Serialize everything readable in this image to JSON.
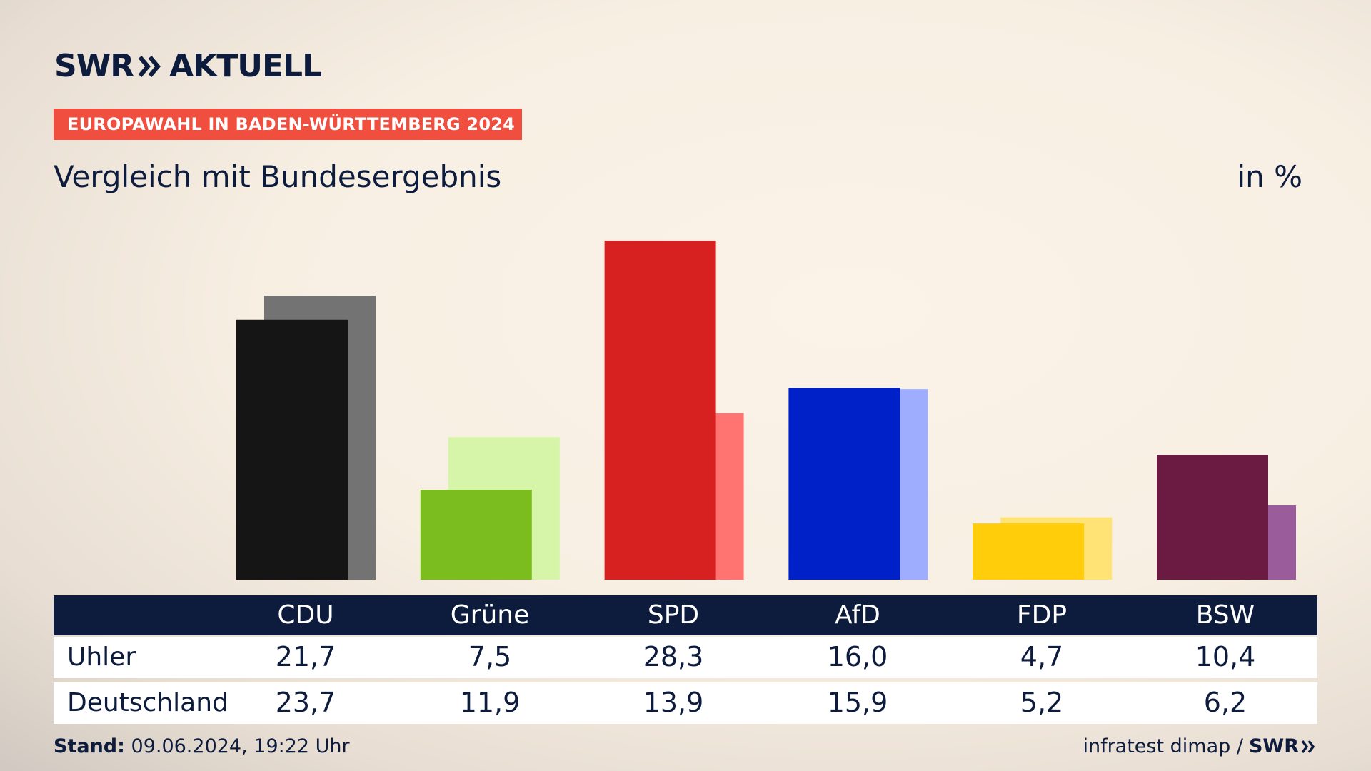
{
  "logo": {
    "brand": "SWR",
    "product": "AKTUELL"
  },
  "badge": "EUROPAWAHL IN BADEN-WÜRTTEMBERG 2024",
  "subtitle": "Vergleich mit Bundesergebnis",
  "unit": "in %",
  "chart_data": {
    "type": "bar",
    "title": "Vergleich mit Bundesergebnis",
    "ylabel": "in %",
    "ylim": [
      0,
      30
    ],
    "categories": [
      "CDU",
      "Grüne",
      "SPD",
      "AfD",
      "FDP",
      "BSW"
    ],
    "series": [
      {
        "name": "Uhler",
        "values": [
          21.7,
          7.5,
          28.3,
          16.0,
          4.7,
          10.4
        ],
        "labels": [
          "21,7",
          "7,5",
          "28,3",
          "16,0",
          "4,7",
          "10,4"
        ]
      },
      {
        "name": "Deutschland",
        "values": [
          23.7,
          11.9,
          13.9,
          15.9,
          5.2,
          6.2
        ],
        "labels": [
          "23,7",
          "11,9",
          "13,9",
          "15,9",
          "5,2",
          "6,2"
        ]
      }
    ],
    "colors": {
      "primary": [
        "#151515",
        "#7bbd1f",
        "#d72020",
        "#0021c8",
        "#ffcd0a",
        "#6b1a41"
      ],
      "secondary": [
        "#737373",
        "#d7f5a8",
        "#ff7470",
        "#9fadff",
        "#ffe475",
        "#9a5c9b"
      ]
    },
    "grid": false,
    "legend": "table-below"
  },
  "footer": {
    "stand_label": "Stand:",
    "stand_value": "09.06.2024, 19:22 Uhr",
    "source": "infratest dimap /",
    "brand": "SWR"
  }
}
